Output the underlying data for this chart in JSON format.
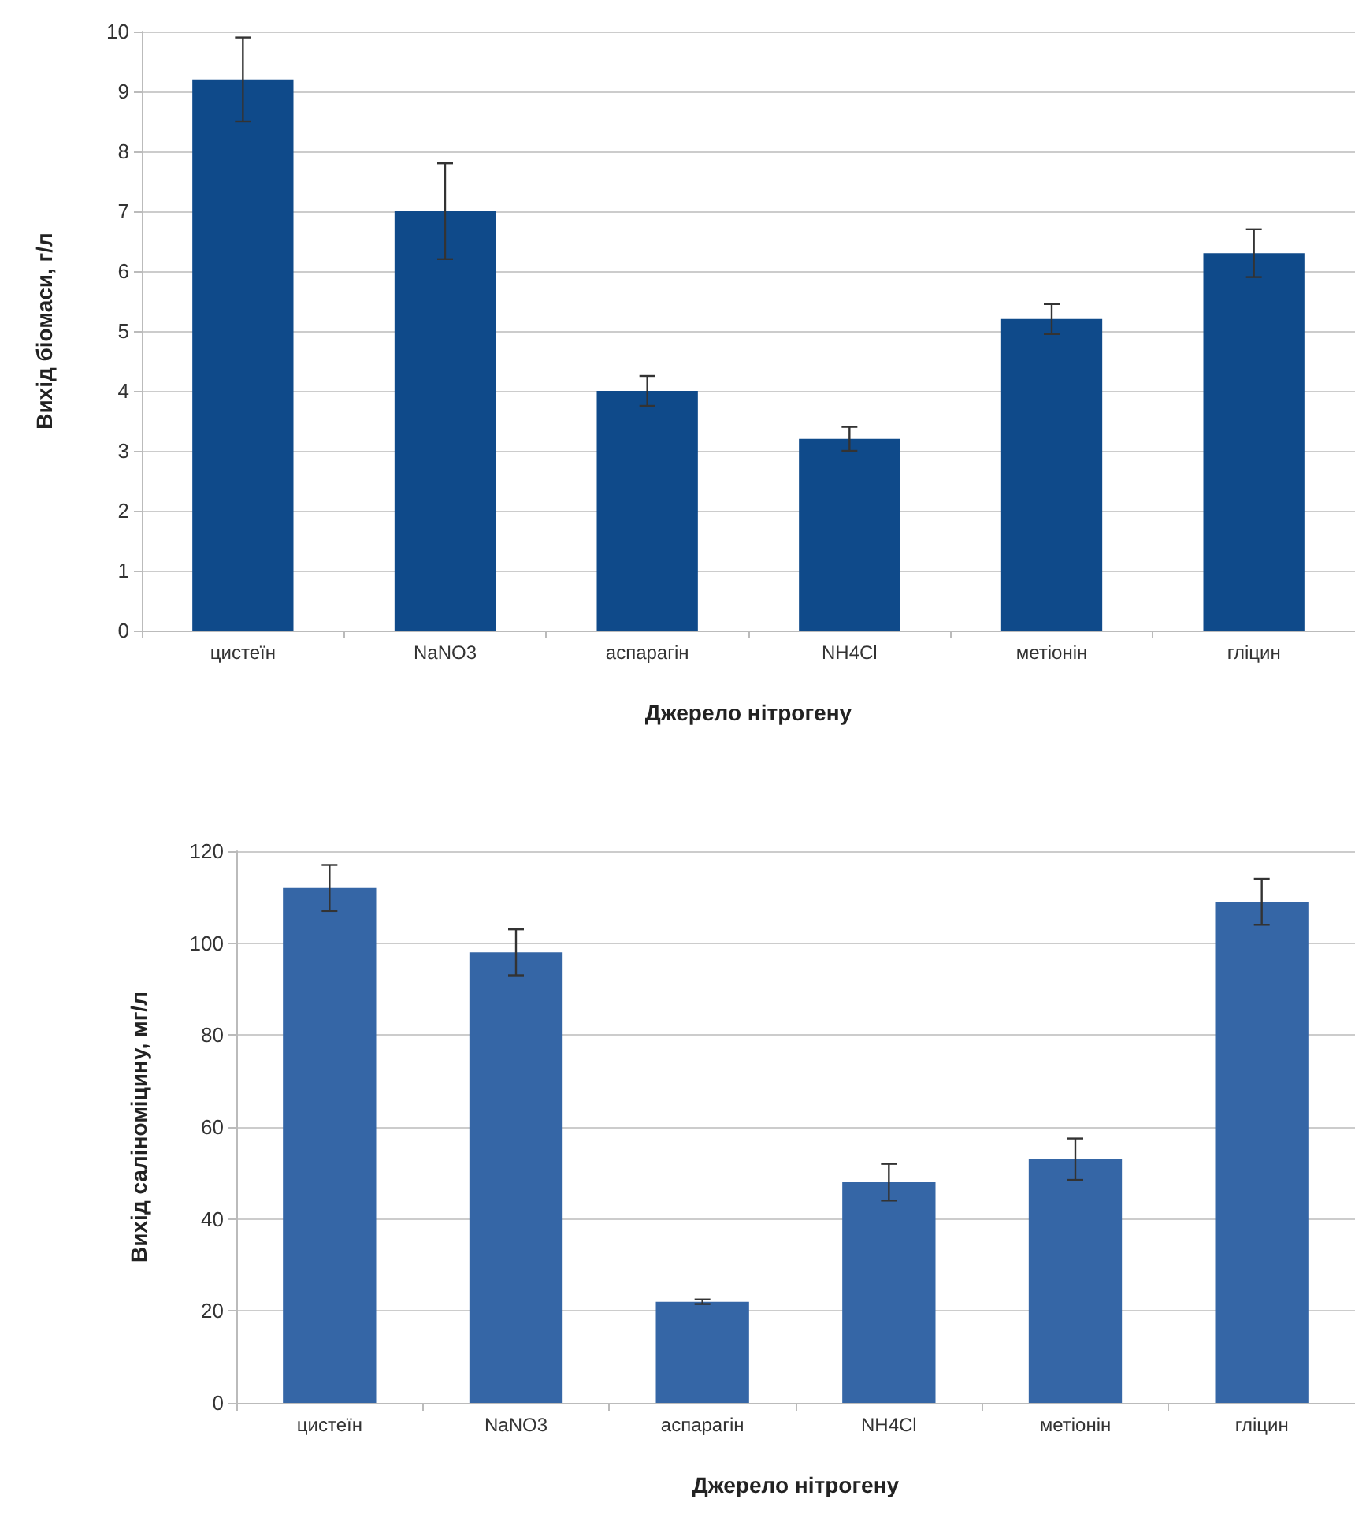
{
  "chart_data": [
    {
      "type": "bar",
      "xlabel": "Джерело нітрогену",
      "ylabel": "Вихід біомаси, г/л",
      "categories": [
        "цистеїн",
        "NaNO3",
        "аспарагін",
        "NH4Cl",
        "метіонін",
        "гліцин"
      ],
      "series": [
        {
          "color": "#0f4a8a",
          "values": [
            9.2,
            7.0,
            4.0,
            3.2,
            5.2,
            6.3
          ],
          "errors": [
            0.7,
            0.8,
            0.25,
            0.2,
            0.25,
            0.4
          ]
        }
      ],
      "ylim": [
        0,
        10
      ],
      "yticks": [
        0,
        1,
        2,
        3,
        4,
        5,
        6,
        7,
        8,
        9,
        10
      ],
      "grid": "y"
    },
    {
      "type": "bar",
      "xlabel": "Джерело нітрогену",
      "ylabel": "Вихід саліноміцину, мг/л",
      "categories": [
        "цистеїн",
        "NaNO3",
        "аспарагін",
        "NH4Cl",
        "метіонін",
        "гліцин"
      ],
      "series": [
        {
          "color": "#3566a6",
          "values": [
            112,
            98,
            22,
            48,
            53,
            109
          ],
          "errors": [
            5,
            5,
            0.5,
            4,
            4.5,
            5
          ]
        }
      ],
      "ylim": [
        0,
        120
      ],
      "yticks": [
        0,
        20,
        40,
        60,
        80,
        100,
        120
      ],
      "grid": "y"
    }
  ]
}
